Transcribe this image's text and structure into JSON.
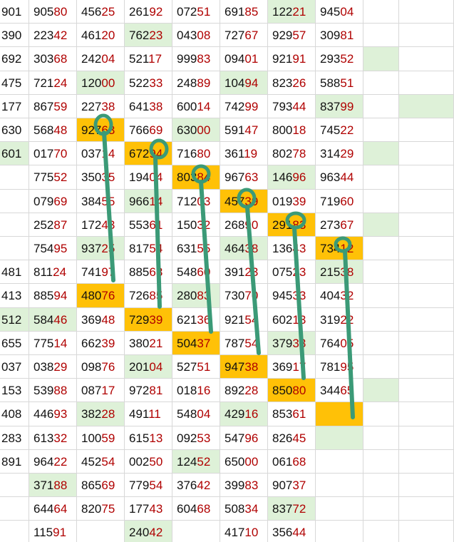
{
  "colors": {
    "green_cell": "#def1d8",
    "orange_cell": "#ffc107",
    "annotation": "#3b9a77",
    "red_digits": "#b00000"
  },
  "grid": {
    "columns": 10,
    "rows": [
      {
        "cells": [
          [
            "901",
            ""
          ],
          [
            "905",
            "80"
          ],
          [
            "456",
            "25"
          ],
          [
            "261",
            "92"
          ],
          [
            "072",
            "51"
          ],
          [
            "691",
            "85"
          ],
          [
            "122",
            "21"
          ],
          [
            "945",
            "04"
          ],
          [
            "",
            ""
          ],
          [
            "",
            ""
          ]
        ],
        "fill": [
          "",
          "",
          "",
          "",
          "",
          "",
          "g",
          "",
          "",
          ""
        ]
      },
      {
        "cells": [
          [
            "390",
            ""
          ],
          [
            "223",
            "42"
          ],
          [
            "461",
            "20"
          ],
          [
            "762",
            "23"
          ],
          [
            "043",
            "08"
          ],
          [
            "727",
            "67"
          ],
          [
            "929",
            "57"
          ],
          [
            "309",
            "81"
          ],
          [
            "",
            ""
          ],
          [
            "",
            ""
          ]
        ],
        "fill": [
          "",
          "",
          "",
          "g",
          "",
          "",
          "",
          "",
          "",
          ""
        ]
      },
      {
        "cells": [
          [
            "692",
            ""
          ],
          [
            "303",
            "68"
          ],
          [
            "242",
            "04"
          ],
          [
            "521",
            "17"
          ],
          [
            "999",
            "83"
          ],
          [
            "094",
            "01"
          ],
          [
            "921",
            "91"
          ],
          [
            "293",
            "52"
          ],
          [
            "",
            ""
          ],
          [
            "",
            ""
          ]
        ],
        "fill": [
          "",
          "",
          "",
          "",
          "",
          "",
          "",
          "",
          "g",
          ""
        ]
      },
      {
        "cells": [
          [
            "475",
            ""
          ],
          [
            "721",
            "24"
          ],
          [
            "120",
            "00"
          ],
          [
            "522",
            "33"
          ],
          [
            "248",
            "89"
          ],
          [
            "104",
            "94"
          ],
          [
            "823",
            "26"
          ],
          [
            "588",
            "51"
          ],
          [
            "",
            ""
          ],
          [
            "",
            ""
          ]
        ],
        "fill": [
          "",
          "",
          "g",
          "",
          "",
          "g",
          "",
          "",
          "",
          ""
        ]
      },
      {
        "cells": [
          [
            "177",
            ""
          ],
          [
            "867",
            "59"
          ],
          [
            "227",
            "38"
          ],
          [
            "641",
            "38"
          ],
          [
            "600",
            "14"
          ],
          [
            "742",
            "99"
          ],
          [
            "793",
            "44"
          ],
          [
            "837",
            "99"
          ],
          [
            "",
            ""
          ],
          [
            "",
            ""
          ]
        ],
        "fill": [
          "",
          "",
          "",
          "",
          "",
          "",
          "",
          "g",
          "",
          "g"
        ]
      },
      {
        "cells": [
          [
            "630",
            ""
          ],
          [
            "568",
            "48"
          ],
          [
            "927",
            "63"
          ],
          [
            "766",
            "69"
          ],
          [
            "630",
            "00"
          ],
          [
            "591",
            "47"
          ],
          [
            "800",
            "18"
          ],
          [
            "745",
            "22"
          ],
          [
            "",
            ""
          ],
          [
            "",
            ""
          ]
        ],
        "fill": [
          "",
          "",
          "o",
          "",
          "g",
          "",
          "",
          "",
          "",
          ""
        ]
      },
      {
        "cells": [
          [
            "601",
            ""
          ],
          [
            "017",
            "70"
          ],
          [
            "037",
            "14"
          ],
          [
            "672",
            "94"
          ],
          [
            "716",
            "80"
          ],
          [
            "361",
            "19"
          ],
          [
            "802",
            "78"
          ],
          [
            "314",
            "29"
          ],
          [
            "",
            ""
          ],
          [
            "",
            ""
          ]
        ],
        "fill": [
          "g",
          "",
          "",
          "o",
          "",
          "",
          "",
          "",
          "g",
          ""
        ]
      },
      {
        "cells": [
          [
            "",
            ""
          ],
          [
            "775",
            "52"
          ],
          [
            "350",
            "35"
          ],
          [
            "194",
            "04"
          ],
          [
            "803",
            "84"
          ],
          [
            "967",
            "63"
          ],
          [
            "146",
            "96"
          ],
          [
            "963",
            "44"
          ],
          [
            "",
            ""
          ],
          [
            "",
            ""
          ]
        ],
        "fill": [
          "",
          "",
          "",
          "",
          "o",
          "",
          "g",
          "",
          "",
          ""
        ]
      },
      {
        "cells": [
          [
            "",
            ""
          ],
          [
            "079",
            "69"
          ],
          [
            "384",
            "55"
          ],
          [
            "966",
            "14"
          ],
          [
            "712",
            "03"
          ],
          [
            "457",
            "39"
          ],
          [
            "019",
            "39"
          ],
          [
            "719",
            "60"
          ],
          [
            "",
            ""
          ],
          [
            "",
            ""
          ]
        ],
        "fill": [
          "",
          "",
          "",
          "g",
          "",
          "o",
          "",
          "",
          "",
          ""
        ]
      },
      {
        "cells": [
          [
            "",
            ""
          ],
          [
            "252",
            "87"
          ],
          [
            "172",
            "43"
          ],
          [
            "553",
            "61"
          ],
          [
            "150",
            "32"
          ],
          [
            "268",
            "90"
          ],
          [
            "291",
            "83"
          ],
          [
            "273",
            "67"
          ],
          [
            "",
            ""
          ],
          [
            "",
            ""
          ]
        ],
        "fill": [
          "",
          "",
          "",
          "",
          "",
          "",
          "o",
          "",
          "g",
          ""
        ]
      },
      {
        "cells": [
          [
            "",
            ""
          ],
          [
            "754",
            "95"
          ],
          [
            "937",
            "25"
          ],
          [
            "817",
            "54"
          ],
          [
            "631",
            "55"
          ],
          [
            "464",
            "38"
          ],
          [
            "136",
            "43"
          ],
          [
            "734",
            "12"
          ],
          [
            "",
            ""
          ],
          [
            "",
            ""
          ]
        ],
        "fill": [
          "",
          "",
          "g",
          "",
          "",
          "g",
          "",
          "o",
          "",
          ""
        ]
      },
      {
        "cells": [
          [
            "481",
            ""
          ],
          [
            "811",
            "24"
          ],
          [
            "741",
            "97"
          ],
          [
            "885",
            "68"
          ],
          [
            "548",
            "60"
          ],
          [
            "391",
            "23"
          ],
          [
            "075",
            "23"
          ],
          [
            "215",
            "38"
          ],
          [
            "",
            ""
          ],
          [
            "",
            ""
          ]
        ],
        "fill": [
          "",
          "",
          "",
          "",
          "",
          "",
          "",
          "g",
          "",
          ""
        ]
      },
      {
        "cells": [
          [
            "413",
            ""
          ],
          [
            "885",
            "94"
          ],
          [
            "480",
            "76"
          ],
          [
            "726",
            "85"
          ],
          [
            "280",
            "83"
          ],
          [
            "730",
            "70"
          ],
          [
            "945",
            "33"
          ],
          [
            "404",
            "32"
          ],
          [
            "",
            ""
          ],
          [
            "",
            ""
          ]
        ],
        "fill": [
          "",
          "",
          "o",
          "",
          "g",
          "",
          "",
          "",
          "",
          ""
        ]
      },
      {
        "cells": [
          [
            "512",
            ""
          ],
          [
            "584",
            "46"
          ],
          [
            "369",
            "48"
          ],
          [
            "729",
            "39"
          ],
          [
            "621",
            "36"
          ],
          [
            "921",
            "54"
          ],
          [
            "602",
            "13"
          ],
          [
            "319",
            "22"
          ],
          [
            "",
            ""
          ],
          [
            "",
            ""
          ]
        ],
        "fill": [
          "g",
          "g",
          "",
          "o",
          "",
          "",
          "",
          "",
          "",
          ""
        ]
      },
      {
        "cells": [
          [
            "655",
            ""
          ],
          [
            "775",
            "14"
          ],
          [
            "662",
            "39"
          ],
          [
            "380",
            "21"
          ],
          [
            "504",
            "37"
          ],
          [
            "787",
            "54"
          ],
          [
            "379",
            "33"
          ],
          [
            "764",
            "05"
          ],
          [
            "",
            ""
          ],
          [
            "",
            ""
          ]
        ],
        "fill": [
          "",
          "",
          "",
          "",
          "o",
          "",
          "g",
          "",
          "",
          ""
        ]
      },
      {
        "cells": [
          [
            "037",
            ""
          ],
          [
            "038",
            "29"
          ],
          [
            "098",
            "76"
          ],
          [
            "201",
            "04"
          ],
          [
            "527",
            "51"
          ],
          [
            "947",
            "38"
          ],
          [
            "369",
            "17"
          ],
          [
            "781",
            "95"
          ],
          [
            "",
            ""
          ],
          [
            "",
            ""
          ]
        ],
        "fill": [
          "",
          "",
          "",
          "g",
          "",
          "o",
          "",
          "",
          "",
          ""
        ]
      },
      {
        "cells": [
          [
            "153",
            ""
          ],
          [
            "539",
            "88"
          ],
          [
            "087",
            "17"
          ],
          [
            "972",
            "81"
          ],
          [
            "018",
            "16"
          ],
          [
            "892",
            "28"
          ],
          [
            "850",
            "80"
          ],
          [
            "344",
            "65"
          ],
          [
            "",
            ""
          ],
          [
            "",
            ""
          ]
        ],
        "fill": [
          "",
          "",
          "",
          "",
          "",
          "",
          "o",
          "",
          "g",
          ""
        ]
      },
      {
        "cells": [
          [
            "408",
            ""
          ],
          [
            "446",
            "93"
          ],
          [
            "382",
            "28"
          ],
          [
            "491",
            "11"
          ],
          [
            "548",
            "04"
          ],
          [
            "429",
            "16"
          ],
          [
            "853",
            "61"
          ],
          [
            "",
            ""
          ],
          [
            "",
            ""
          ],
          [
            "",
            ""
          ]
        ],
        "fill": [
          "",
          "",
          "g",
          "",
          "",
          "g",
          "",
          "o",
          "",
          ""
        ]
      },
      {
        "cells": [
          [
            "283",
            ""
          ],
          [
            "613",
            "32"
          ],
          [
            "100",
            "59"
          ],
          [
            "615",
            "13"
          ],
          [
            "092",
            "53"
          ],
          [
            "547",
            "96"
          ],
          [
            "826",
            "45"
          ],
          [
            "",
            ""
          ],
          [
            "",
            ""
          ],
          [
            "",
            ""
          ]
        ],
        "fill": [
          "",
          "",
          "",
          "",
          "",
          "",
          "",
          "g",
          "",
          ""
        ]
      },
      {
        "cells": [
          [
            "891",
            ""
          ],
          [
            "964",
            "22"
          ],
          [
            "452",
            "54"
          ],
          [
            "002",
            "50"
          ],
          [
            "124",
            "52"
          ],
          [
            "650",
            "00"
          ],
          [
            "061",
            "68"
          ],
          [
            "",
            ""
          ],
          [
            "",
            ""
          ],
          [
            "",
            ""
          ]
        ],
        "fill": [
          "",
          "",
          "",
          "",
          "g",
          "",
          "",
          "",
          "",
          ""
        ]
      },
      {
        "cells": [
          [
            "",
            ""
          ],
          [
            "371",
            "88"
          ],
          [
            "865",
            "69"
          ],
          [
            "779",
            "54"
          ],
          [
            "376",
            "42"
          ],
          [
            "399",
            "83"
          ],
          [
            "907",
            "37"
          ],
          [
            "",
            ""
          ],
          [
            "",
            ""
          ],
          [
            "",
            ""
          ]
        ],
        "fill": [
          "",
          "g",
          "",
          "",
          "",
          "",
          "",
          "",
          "",
          ""
        ]
      },
      {
        "cells": [
          [
            "",
            ""
          ],
          [
            "644",
            "64"
          ],
          [
            "820",
            "75"
          ],
          [
            "177",
            "43"
          ],
          [
            "604",
            "68"
          ],
          [
            "508",
            "34"
          ],
          [
            "837",
            "72"
          ],
          [
            "",
            ""
          ],
          [
            "",
            ""
          ],
          [
            "",
            ""
          ]
        ],
        "fill": [
          "",
          "",
          "",
          "",
          "",
          "",
          "g",
          "",
          "",
          ""
        ]
      },
      {
        "cells": [
          [
            "",
            ""
          ],
          [
            "115",
            "91"
          ],
          [
            "",
            ""
          ],
          [
            "240",
            "42"
          ],
          [
            "",
            ""
          ],
          [
            "417",
            "10"
          ],
          [
            "356",
            "44"
          ],
          [
            "",
            ""
          ],
          [
            "",
            ""
          ],
          [
            "",
            ""
          ]
        ],
        "fill": [
          "",
          "",
          "",
          "g",
          "",
          "",
          "",
          "",
          "",
          ""
        ]
      }
    ]
  }
}
